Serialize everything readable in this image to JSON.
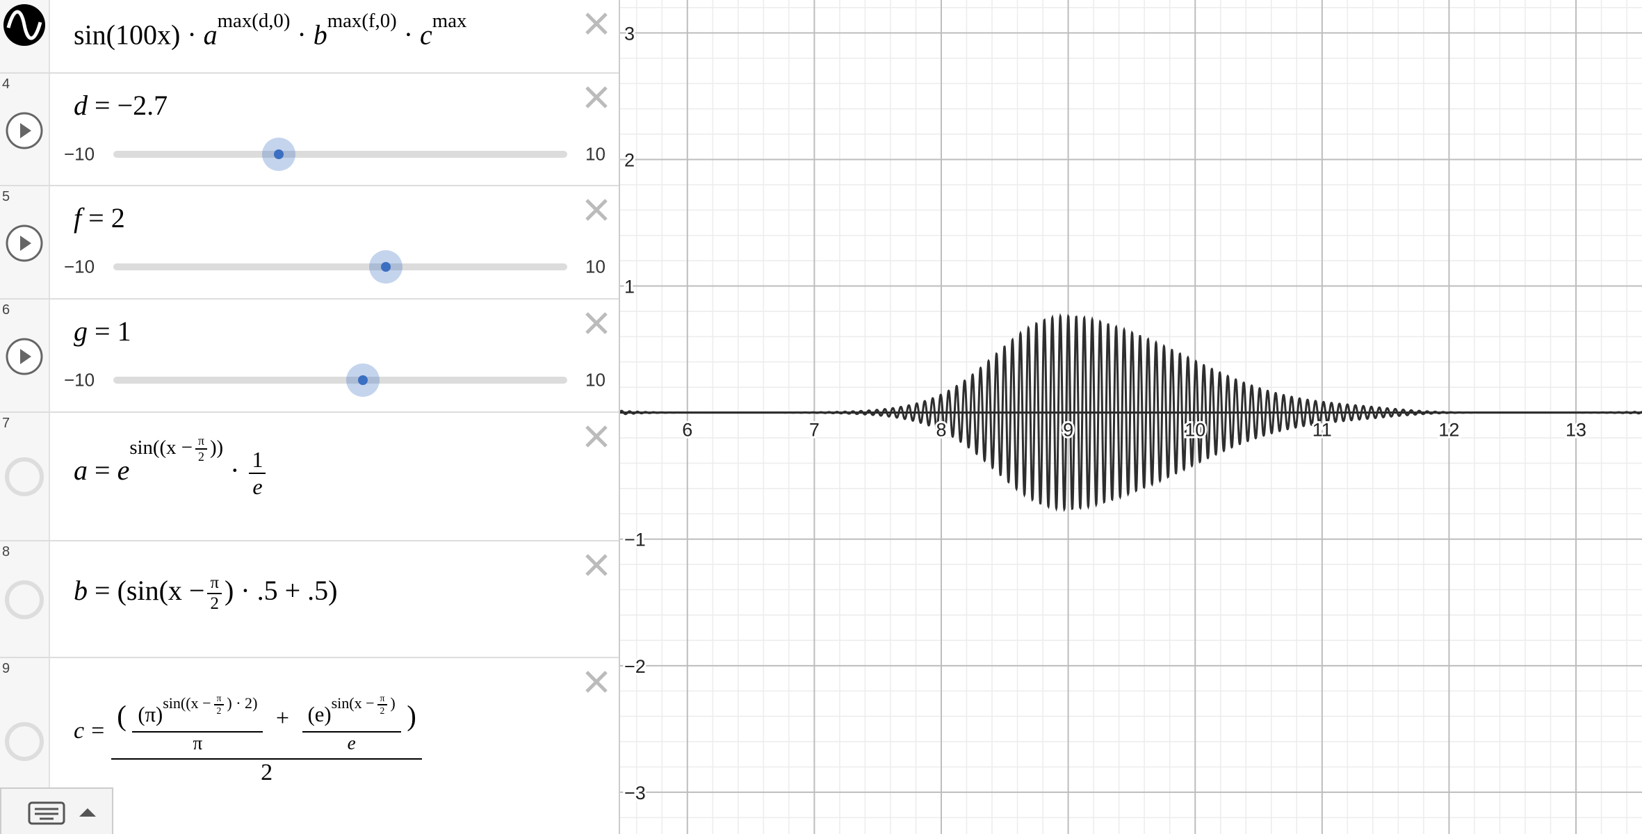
{
  "expressions": [
    {
      "parts": [
        "sin(100x)",
        "·",
        "a",
        "max(d,0)",
        "·",
        "b",
        "max(f,0)",
        "·",
        "c",
        "max"
      ]
    },
    {
      "number": 4,
      "variable": "d",
      "equals": "=",
      "value": -2.7,
      "value_label": "−2.7",
      "slider_min": {
        "value": -10,
        "label": "−10"
      },
      "slider_max": 10
    },
    {
      "number": 5,
      "variable": "f",
      "equals": "=",
      "value": 2,
      "slider_min": {
        "value": -10,
        "label": "−10"
      },
      "slider_max": 10
    },
    {
      "number": 6,
      "variable": "g",
      "equals": "=",
      "value": 1,
      "slider_min": {
        "value": -10,
        "label": "−10"
      },
      "slider_max": 10
    },
    {
      "number": 7,
      "parts": [
        "a",
        "=",
        "e",
        "sin((x −",
        "π",
        "2",
        "))",
        "·",
        "1",
        "e"
      ]
    },
    {
      "number": 8,
      "parts": [
        "b",
        "=",
        "(sin(x −",
        "π",
        "2",
        ") · .5 + .5)"
      ]
    },
    {
      "number": 9,
      "parts": [
        "c",
        "=",
        "(π)",
        "sin((x −",
        "π",
        "2",
        ") · 2)",
        "π",
        "+",
        "(e)",
        "sin(x −",
        "π",
        "2",
        ")",
        "e",
        "2"
      ]
    }
  ],
  "graph": {
    "xlim": [
      5.47,
      13.52
    ],
    "ylim": [
      -3.33,
      3.26
    ],
    "xticks": [
      6,
      7,
      8,
      9,
      10,
      11,
      12,
      13
    ],
    "yticks": [
      {
        "value": -3,
        "label": "−3"
      },
      {
        "value": -2,
        "label": "−2"
      },
      {
        "value": -1,
        "label": "−1"
      },
      1,
      2,
      3
    ],
    "grid": true,
    "curve_color": "#2e2e2e"
  }
}
